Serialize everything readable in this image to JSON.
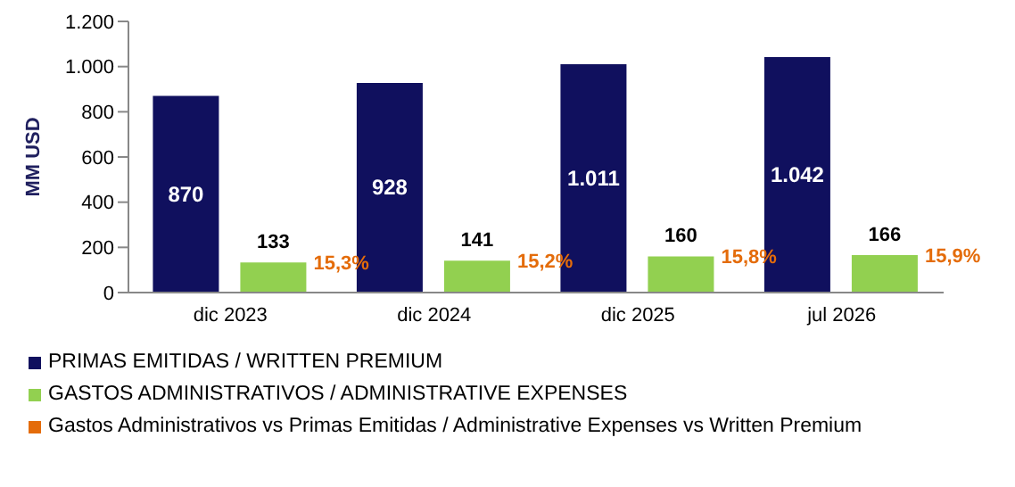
{
  "chart_data": {
    "type": "bar",
    "ylabel": "MM USD",
    "categories": [
      "dic 2023",
      "dic 2024",
      "dic 2025",
      "jul 2026"
    ],
    "ylim": [
      0,
      1200
    ],
    "yticks": [
      0,
      {
        "value": 200,
        "label": "200"
      },
      {
        "value": 400,
        "label": "400"
      },
      {
        "value": 600,
        "label": "600"
      },
      {
        "value": 800,
        "label": "800"
      },
      {
        "value": 1000,
        "label": "1.000"
      },
      {
        "value": 1200,
        "label": "1.200"
      }
    ],
    "legend": "bottom",
    "series": [
      {
        "name": "PRIMAS EMITIDAS / WRITTEN PREMIUM",
        "color": "#10105e",
        "values": [
          870,
          928,
          1011,
          1042
        ],
        "value_labels": [
          "870",
          "928",
          "1.011",
          "1.042"
        ]
      },
      {
        "name": "GASTOS ADMINISTRATIVOS / ADMINISTRATIVE EXPENSES",
        "color": "#92d050",
        "values": [
          133,
          141,
          160,
          166
        ],
        "value_labels": [
          "133",
          "141",
          "160",
          "166"
        ]
      },
      {
        "name": "Gastos Administrativos vs Primas Emitidas / Administrative Expenses vs Written Premium",
        "type": "line",
        "color": "#e46c0a",
        "values": [
          null,
          null,
          null,
          null
        ]
      }
    ],
    "annotations": [
      "15,3%",
      "15,2%",
      "15,8%",
      "15,9%"
    ]
  }
}
